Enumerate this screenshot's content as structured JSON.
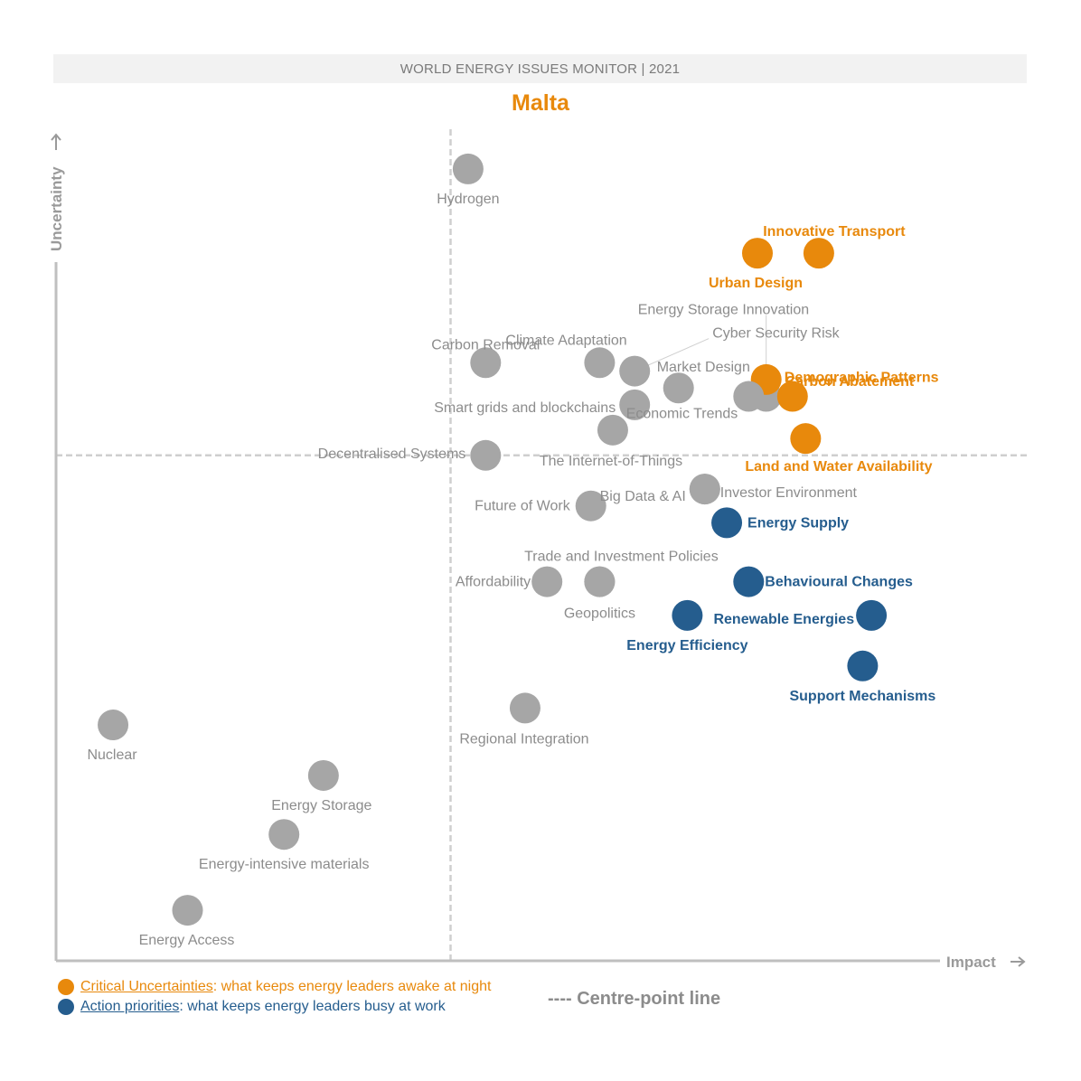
{
  "header": {
    "title": "WORLD ENERGY ISSUES MONITOR | 2021"
  },
  "country": "Malta",
  "colors": {
    "uncertainty": "#e8890c",
    "action": "#255d8e",
    "neutral": "#a6a6a6",
    "axis": "#bfbfbf"
  },
  "chart_data": {
    "type": "scatter",
    "title": "Malta",
    "xlabel": "Impact",
    "ylabel": "Uncertainty",
    "xlim": [
      0,
      100
    ],
    "ylim": [
      0,
      100
    ],
    "centre_point": {
      "x": 45,
      "y": 60
    },
    "points": [
      {
        "label": "Hydrogen",
        "x": 47,
        "y": 94,
        "category": "neutral"
      },
      {
        "label": "Innovative Transport",
        "x": 87,
        "y": 84,
        "category": "uncertainty"
      },
      {
        "label": "Urban Design",
        "x": 80,
        "y": 84,
        "category": "uncertainty"
      },
      {
        "label": "Energy Storage Innovation",
        "x": 81,
        "y": 67,
        "category": "neutral"
      },
      {
        "label": "Carbon Removal",
        "x": 49,
        "y": 71,
        "category": "neutral"
      },
      {
        "label": "Climate Adaptation",
        "x": 62,
        "y": 71,
        "category": "neutral"
      },
      {
        "label": "Cyber Security Risk",
        "x": 66,
        "y": 70,
        "category": "neutral"
      },
      {
        "label": "Market Design",
        "x": 71,
        "y": 68,
        "category": "neutral"
      },
      {
        "label": "Carbon Abatement",
        "x": 81,
        "y": 69,
        "category": "uncertainty"
      },
      {
        "label": "Demographic Patterns",
        "x": 84,
        "y": 67,
        "category": "uncertainty"
      },
      {
        "label": "Smart grids and blockchains",
        "x": 66,
        "y": 66,
        "category": "neutral"
      },
      {
        "label": "Economic Trends",
        "x": 79,
        "y": 67,
        "category": "neutral"
      },
      {
        "label": "Land and Water Availability",
        "x": 85.5,
        "y": 62,
        "category": "uncertainty"
      },
      {
        "label": "Decentralised Systems",
        "x": 49,
        "y": 60,
        "category": "neutral"
      },
      {
        "label": "The Internet-of-Things",
        "x": 63.5,
        "y": 63,
        "category": "neutral"
      },
      {
        "label": "Investor Environment",
        "x": 74,
        "y": 56,
        "category": "neutral"
      },
      {
        "label": "Big Data & AI",
        "x": 74,
        "y": 56,
        "category": "neutral"
      },
      {
        "label": "Future of Work",
        "x": 61,
        "y": 54,
        "category": "neutral"
      },
      {
        "label": "Energy Supply",
        "x": 76.5,
        "y": 52,
        "category": "action"
      },
      {
        "label": "Trade and Investment Policies",
        "x": 62,
        "y": 45,
        "category": "neutral"
      },
      {
        "label": "Affordability",
        "x": 56,
        "y": 45,
        "category": "neutral"
      },
      {
        "label": "Geopolitics",
        "x": 62,
        "y": 45,
        "category": "neutral"
      },
      {
        "label": "Behavioural Changes",
        "x": 79,
        "y": 45,
        "category": "action"
      },
      {
        "label": "Energy Efficiency",
        "x": 72,
        "y": 41,
        "category": "action"
      },
      {
        "label": "Renewable Energies",
        "x": 93,
        "y": 41,
        "category": "action"
      },
      {
        "label": "Support Mechanisms",
        "x": 92,
        "y": 35,
        "category": "action"
      },
      {
        "label": "Regional Integration",
        "x": 53.5,
        "y": 30,
        "category": "neutral"
      },
      {
        "label": "Nuclear",
        "x": 6.5,
        "y": 28,
        "category": "neutral"
      },
      {
        "label": "Energy Storage",
        "x": 30.5,
        "y": 22,
        "category": "neutral"
      },
      {
        "label": "Energy-intensive materials",
        "x": 26,
        "y": 15,
        "category": "neutral"
      },
      {
        "label": "Energy Access",
        "x": 15,
        "y": 6,
        "category": "neutral"
      }
    ]
  },
  "legend": {
    "uncertainty_key": "Critical Uncertainties",
    "uncertainty_text": ": what keeps energy leaders awake at night",
    "action_key": "Action priorities",
    "action_text": ": what keeps energy leaders busy at work",
    "centre_line": "---- Centre-point line"
  }
}
